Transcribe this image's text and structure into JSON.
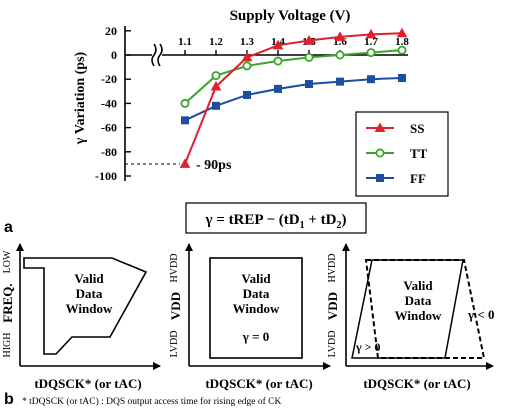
{
  "panel_a": {
    "label": "a",
    "annotation": "- 90ps",
    "chart_data": {
      "type": "line",
      "title": "Supply Voltage (V)",
      "xlabel": "Supply Voltage (V)",
      "ylabel": "γ Variation (ps)",
      "x": [
        1.1,
        1.2,
        1.3,
        1.4,
        1.5,
        1.6,
        1.7,
        1.8
      ],
      "x_tick_labels": [
        "1.1",
        "1.2",
        "1.3",
        "1.4",
        "1.5",
        "1.6",
        "1.7",
        "1.8"
      ],
      "y_ticks": [
        20,
        0,
        -20,
        -40,
        -60,
        -80,
        -100
      ],
      "y_tick_labels": [
        "20",
        "0",
        "-20",
        "-40",
        "-60",
        "-80",
        "-100"
      ],
      "ylim": [
        -100,
        20
      ],
      "xlim": [
        1.1,
        1.8
      ],
      "axis_break": true,
      "grid": false,
      "legend_position": "bottom-right",
      "series": [
        {
          "name": "SS",
          "color": "#e0202c",
          "marker": "triangle",
          "values": [
            -90,
            -26,
            -2,
            8,
            12,
            15,
            17,
            18
          ]
        },
        {
          "name": "TT",
          "color": "#3aa62a",
          "marker": "circle",
          "values": [
            -40,
            -17,
            -9,
            -5,
            -2,
            0,
            2,
            4
          ]
        },
        {
          "name": "FF",
          "color": "#1d4f9f",
          "marker": "square",
          "values": [
            -54,
            -42,
            -33,
            -28,
            -24,
            -22,
            -20,
            -19
          ]
        }
      ]
    }
  },
  "equation": {
    "lhs": "γ = tREP",
    "minus": " − ",
    "open": "(tD",
    "sub1": "1",
    "plus": " + tD",
    "sub2": "2",
    "close": ")"
  },
  "panel_b": {
    "label": "b",
    "window_label": [
      "Valid",
      "Data",
      "Window"
    ],
    "x_axis_label": "tDQSCK* (or tAC)",
    "diagram1": {
      "y_label": "FREQ.",
      "y_top": "LOW",
      "y_bottom": "HIGH"
    },
    "diagram2": {
      "y_label": "VDD",
      "y_top": "HVDD",
      "y_bottom": "LVDD",
      "condition": "γ = 0"
    },
    "diagram3": {
      "y_label": "VDD",
      "y_top": "HVDD",
      "y_bottom": "LVDD",
      "condition_right": "γ < 0",
      "condition_left": "γ > 0"
    },
    "footnote": "* tDQSCK (or tAC) : DQS output access time for rising edge of CK"
  }
}
